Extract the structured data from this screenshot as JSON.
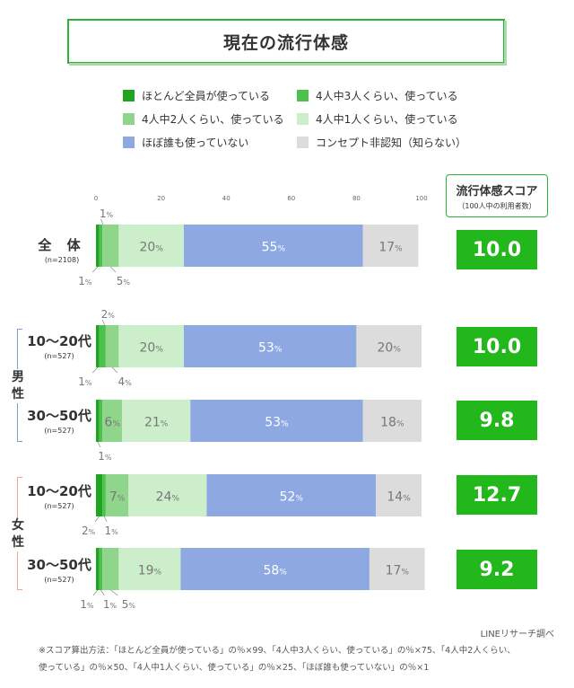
{
  "title": "現在の流行体感",
  "legend": [
    {
      "label": "ほとんど全員が使っている",
      "color": "#1fa51f"
    },
    {
      "label": "4人中3人くらい、使っている",
      "color": "#4dc04d"
    },
    {
      "label": "4人中2人くらい、使っている",
      "color": "#8fd68c"
    },
    {
      "label": "4人中1人くらい、使っている",
      "color": "#cdeecb"
    },
    {
      "label": "ほぼ誰も使っていない",
      "color": "#8ea8e2"
    },
    {
      "label": "コンセプト非認知（知らない）",
      "color": "#dcdcdc"
    }
  ],
  "score_header": {
    "title": "流行体感スコア",
    "subtitle": "（100人中の利用者数）"
  },
  "groups": {
    "male": "男性",
    "female": "女性"
  },
  "chart_data": {
    "type": "bar",
    "orientation": "horizontal-stacked",
    "xlim": [
      0,
      100
    ],
    "x_ticks": [
      "0",
      "20",
      "40",
      "60",
      "80",
      "100"
    ],
    "percent_suffix": "%",
    "series_names": [
      "ほとんど全員が使っている",
      "4人中3人くらい、使っている",
      "4人中2人くらい、使っている",
      "4人中1人くらい、使っている",
      "ほぼ誰も使っていない",
      "コンセプト非認知（知らない）"
    ],
    "rows": [
      {
        "label": "全 体",
        "n": "(n=2108)",
        "values": [
          1,
          1,
          5,
          20,
          55,
          17
        ],
        "score": "10.0"
      },
      {
        "label": "10〜20代",
        "n": "(n=527)",
        "values": [
          1,
          2,
          4,
          20,
          53,
          20
        ],
        "score": "10.0"
      },
      {
        "label": "30〜50代",
        "n": "(n=527)",
        "values": [
          1,
          1,
          6,
          21,
          53,
          18
        ],
        "score": "9.8"
      },
      {
        "label": "10〜20代",
        "n": "(n=527)",
        "values": [
          2,
          1,
          7,
          24,
          52,
          14
        ],
        "score": "12.7"
      },
      {
        "label": "30〜50代",
        "n": "(n=527)",
        "values": [
          1,
          1,
          5,
          19,
          58,
          17
        ],
        "score": "9.2"
      }
    ]
  },
  "footer": {
    "source": "LINEリサーチ調べ",
    "note1": "※スコア算出方法：「ほとんど全員が使っている」の％×99、「4人中3人くらい、使っている」の％×75、「4人中2人くらい、",
    "note2": "使っている」の％×50、「4人中1人くらい、使っている」の％×25、「ほぼ誰も使っていない」の％×1"
  }
}
